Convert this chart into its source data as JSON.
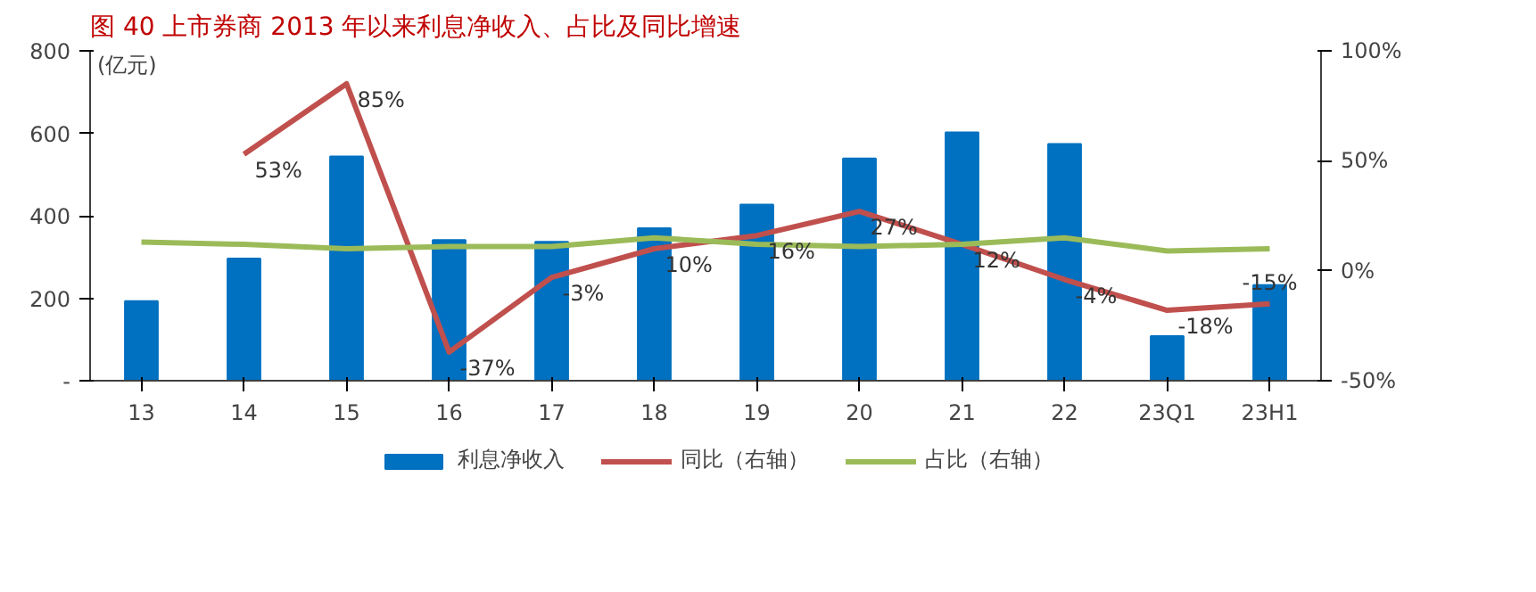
{
  "chart_data": {
    "type": "bar",
    "title": "图 40 上市券商 2013 年以来利息净收入、占比及同比增速",
    "ylabel": "(亿元)",
    "categories": [
      "13",
      "14",
      "15",
      "16",
      "17",
      "18",
      "19",
      "20",
      "21",
      "22",
      "23Q1",
      "23H1"
    ],
    "series": [
      {
        "name": "利息净收入",
        "color": "#0070c0",
        "values": [
          193,
          296,
          544,
          341,
          337,
          370,
          427,
          539,
          602,
          574,
          108,
          232
        ]
      },
      {
        "name": "同比（右轴）",
        "type": "line",
        "axis": "y2",
        "color": "#c0504d",
        "values": [
          null,
          53,
          85,
          -37,
          -3,
          10,
          16,
          27,
          12,
          -4,
          -18,
          -15
        ],
        "value_labels": [
          null,
          "53%",
          "85%",
          "-37%",
          "-3%",
          "10%",
          "16%",
          "27%",
          "12%",
          "-4%",
          "-18%",
          "-15%"
        ]
      },
      {
        "name": "占比（右轴）",
        "type": "line",
        "axis": "y2",
        "color": "#9bbb59",
        "values": [
          13,
          12,
          10,
          11,
          11,
          15,
          12,
          11,
          12,
          15,
          9,
          10
        ]
      }
    ],
    "ylim": [
      0,
      800
    ],
    "yticks": [
      {
        "value": 0,
        "label": "-"
      },
      200,
      400,
      600,
      800
    ],
    "y2lim": [
      -50,
      100
    ],
    "y2ticks": [
      {
        "value": -50,
        "label": "-50%"
      },
      {
        "value": 0,
        "label": "0%"
      },
      {
        "value": 50,
        "label": "50%"
      },
      {
        "value": 100,
        "label": "100%"
      }
    ],
    "legend": "bottom",
    "grid": false
  }
}
